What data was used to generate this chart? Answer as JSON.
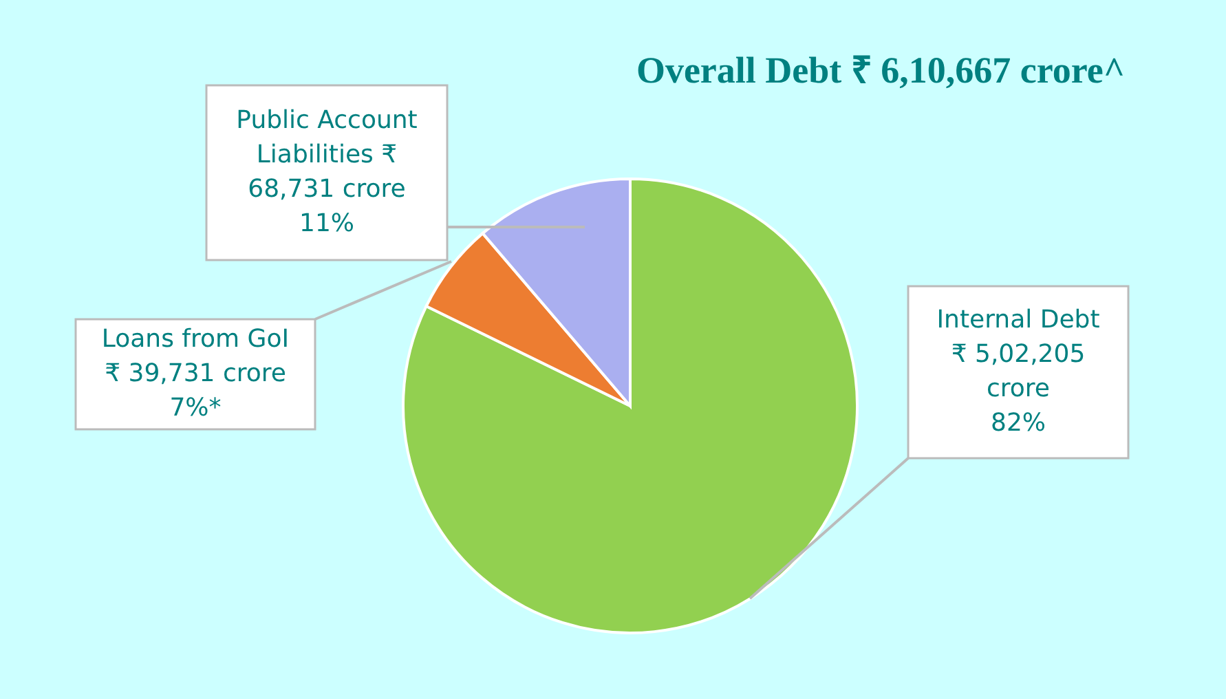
{
  "chart_data": {
    "type": "pie",
    "title": "Overall Debt ₹ 6,10,667 crore^",
    "categories": [
      "Internal Debt",
      "Loans from GoI",
      "Public Account Liabilities"
    ],
    "values": [
      502205,
      39731,
      68731
    ],
    "colors": [
      "#92d050",
      "#ed7d31",
      "#aaaff0"
    ],
    "value_labels": [
      "₹ 5,02,205\ncrore\n82%",
      "₹ 39,731 crore\n7%*",
      "₹\n68,731 crore\n11%"
    ]
  }
}
